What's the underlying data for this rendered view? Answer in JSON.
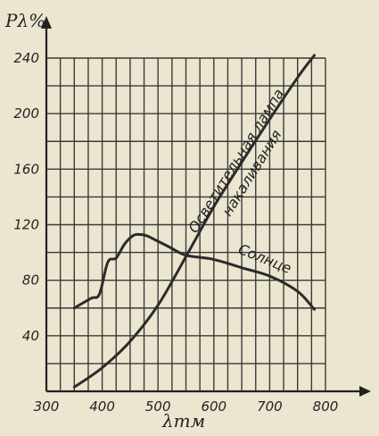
{
  "chart_data": {
    "type": "line",
    "xlabel": "λтм",
    "ylabel": "Pλ%",
    "xlim": [
      300,
      800
    ],
    "ylim": [
      0,
      240
    ],
    "x_ticks": [
      300,
      400,
      500,
      600,
      700,
      800
    ],
    "y_ticks": [
      40,
      80,
      120,
      160,
      200,
      240
    ],
    "grid": true,
    "series": [
      {
        "name": "Осветительная лампа накаливания",
        "x": [
          350,
          400,
          450,
          500,
          550,
          600,
          650,
          700,
          750,
          780
        ],
        "y": [
          3,
          17,
          36,
          62,
          97,
          133,
          165,
          196,
          226,
          242
        ]
      },
      {
        "name": "Солнце",
        "x": [
          350,
          380,
          395,
          410,
          425,
          440,
          455,
          465,
          480,
          500,
          520,
          550,
          600,
          650,
          700,
          750,
          780
        ],
        "y": [
          60,
          67,
          70,
          93,
          96,
          106,
          112,
          113,
          112,
          108,
          104,
          98,
          95,
          89,
          83,
          72,
          59
        ]
      }
    ],
    "annotations": [
      {
        "line1": "Осветительная лампа",
        "line2": "накаливания"
      },
      {
        "text": "Солнце"
      }
    ]
  }
}
